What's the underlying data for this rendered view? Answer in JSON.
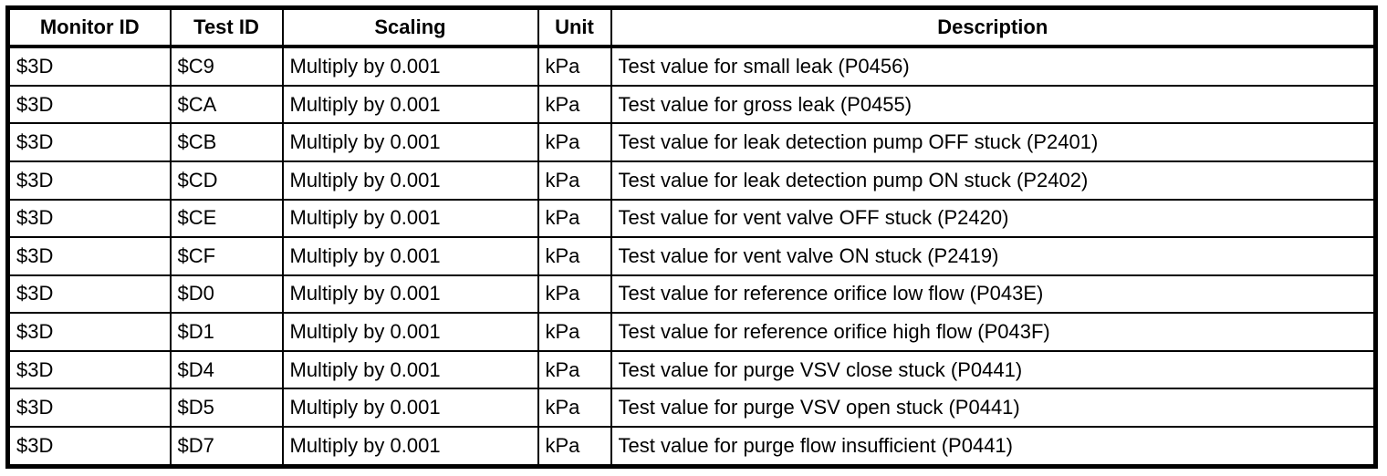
{
  "colors": {
    "border": "#000000",
    "text": "#000000",
    "background": "#ffffff"
  },
  "table": {
    "columns": [
      {
        "key": "monitor_id",
        "label": "Monitor ID"
      },
      {
        "key": "test_id",
        "label": "Test ID"
      },
      {
        "key": "scaling",
        "label": "Scaling"
      },
      {
        "key": "unit",
        "label": "Unit"
      },
      {
        "key": "description",
        "label": "Description"
      }
    ],
    "rows": [
      {
        "monitor_id": "$3D",
        "test_id": "$C9",
        "scaling": "Multiply by 0.001",
        "unit": "kPa",
        "description": "Test value for small leak (P0456)"
      },
      {
        "monitor_id": "$3D",
        "test_id": "$CA",
        "scaling": "Multiply by 0.001",
        "unit": "kPa",
        "description": "Test value for gross leak (P0455)"
      },
      {
        "monitor_id": "$3D",
        "test_id": "$CB",
        "scaling": "Multiply by 0.001",
        "unit": "kPa",
        "description": "Test value for leak detection pump OFF stuck (P2401)"
      },
      {
        "monitor_id": "$3D",
        "test_id": "$CD",
        "scaling": "Multiply by 0.001",
        "unit": "kPa",
        "description": "Test value for leak detection pump ON stuck (P2402)"
      },
      {
        "monitor_id": "$3D",
        "test_id": "$CE",
        "scaling": "Multiply by 0.001",
        "unit": "kPa",
        "description": "Test value for vent valve OFF stuck (P2420)"
      },
      {
        "monitor_id": "$3D",
        "test_id": "$CF",
        "scaling": "Multiply by 0.001",
        "unit": "kPa",
        "description": "Test value for vent valve ON stuck (P2419)"
      },
      {
        "monitor_id": "$3D",
        "test_id": "$D0",
        "scaling": "Multiply by 0.001",
        "unit": "kPa",
        "description": "Test value for reference orifice low flow (P043E)"
      },
      {
        "monitor_id": "$3D",
        "test_id": "$D1",
        "scaling": "Multiply by 0.001",
        "unit": "kPa",
        "description": "Test value for reference orifice high flow (P043F)"
      },
      {
        "monitor_id": "$3D",
        "test_id": "$D4",
        "scaling": "Multiply by 0.001",
        "unit": "kPa",
        "description": "Test value for purge VSV close stuck (P0441)"
      },
      {
        "monitor_id": "$3D",
        "test_id": "$D5",
        "scaling": "Multiply by 0.001",
        "unit": "kPa",
        "description": "Test value for purge VSV open stuck (P0441)"
      },
      {
        "monitor_id": "$3D",
        "test_id": "$D7",
        "scaling": "Multiply by 0.001",
        "unit": "kPa",
        "description": "Test value for purge flow insufficient (P0441)"
      }
    ]
  }
}
